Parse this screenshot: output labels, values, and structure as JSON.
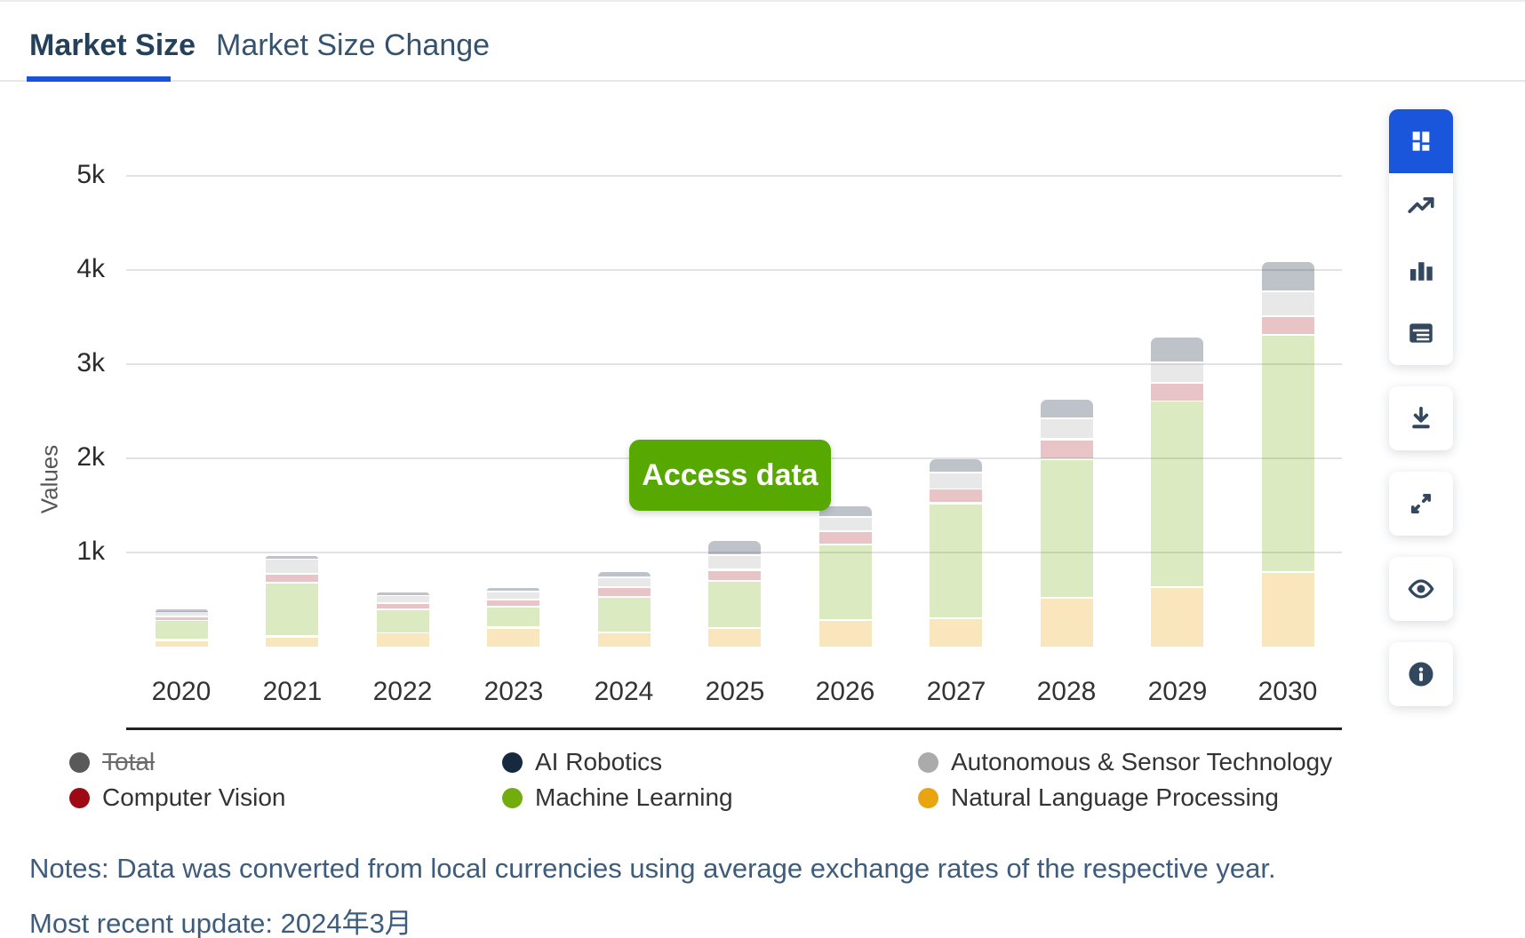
{
  "tabs": {
    "market_size": "Market Size",
    "market_size_change": "Market Size Change"
  },
  "chart": {
    "y_axis_label": "Values",
    "access_button_label": "Access data",
    "accent_green": "#57a800",
    "active_tab_underline": "#1a53d9",
    "toolbar_active_blue": "#1a56db"
  },
  "chart_data": {
    "type": "bar",
    "stacked": true,
    "title": "",
    "xlabel": "",
    "ylabel": "Values",
    "ylim": [
      0,
      5000
    ],
    "grid": true,
    "legend_position": "bottom",
    "y_ticks": [
      "1k",
      "2k",
      "3k",
      "4k",
      "5k"
    ],
    "y_tick_values": [
      1000,
      2000,
      3000,
      4000,
      5000
    ],
    "categories": [
      "2020",
      "2021",
      "2022",
      "2023",
      "2024",
      "2025",
      "2026",
      "2027",
      "2028",
      "2029",
      "2030"
    ],
    "series": [
      {
        "name": "Natural Language Processing",
        "legend_color": "#e9a510",
        "fill": "rgba(233,165,16,0.28)",
        "values": [
          80,
          115,
          160,
          210,
          160,
          210,
          290,
          310,
          530,
          640,
          800
        ]
      },
      {
        "name": "Machine Learning",
        "legend_color": "#73ad0d",
        "fill": "rgba(115,173,13,0.26)",
        "values": [
          210,
          570,
          250,
          220,
          380,
          500,
          800,
          1220,
          1470,
          1980,
          2520
        ]
      },
      {
        "name": "Computer Vision",
        "legend_color": "#9d0a14",
        "fill": "rgba(157,10,20,0.24)",
        "values": [
          40,
          95,
          65,
          75,
          105,
          115,
          145,
          155,
          210,
          195,
          200
        ]
      },
      {
        "name": "Autonomous & Sensor Technology",
        "legend_color": "#ababab",
        "fill": "rgba(171,171,171,0.28)",
        "values": [
          70,
          160,
          85,
          85,
          100,
          155,
          155,
          175,
          220,
          215,
          260
        ]
      },
      {
        "name": "AI Robotics",
        "legend_color": "#16293e",
        "fill": "rgba(22,41,62,0.28)",
        "values": [
          15,
          40,
          30,
          50,
          70,
          165,
          120,
          150,
          210,
          270,
          320
        ]
      }
    ],
    "disabled_series": {
      "name": "Total",
      "legend_color": "#595959"
    }
  },
  "legend": {
    "items": [
      {
        "label": "Total",
        "color": "#595959",
        "strikethrough": true
      },
      {
        "label": "AI Robotics",
        "color": "#16293e",
        "strikethrough": false
      },
      {
        "label": "Autonomous & Sensor Technology",
        "color": "#ababab",
        "strikethrough": false
      },
      {
        "label": "Computer Vision",
        "color": "#9d0a14",
        "strikethrough": false
      },
      {
        "label": "Machine Learning",
        "color": "#73ad0d",
        "strikethrough": false
      },
      {
        "label": "Natural Language Processing",
        "color": "#e9a510",
        "strikethrough": false
      }
    ]
  },
  "notes": {
    "line1": "Notes: Data was converted from local currencies using average exchange rates of the respective year.",
    "line2": "Most recent update: 2024年3月"
  },
  "toolbar": {
    "chart_type_buttons": [
      "overview-grid",
      "line-chart",
      "bar-chart",
      "data-table"
    ],
    "action_buttons": [
      "download",
      "expand",
      "hide-eye",
      "info"
    ]
  }
}
